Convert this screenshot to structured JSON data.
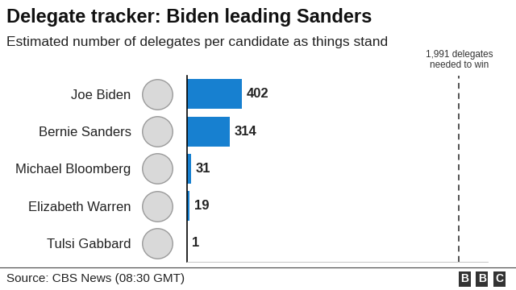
{
  "chart_data": {
    "type": "bar",
    "orientation": "horizontal",
    "title": "Delegate tracker: Biden leading Sanders",
    "subtitle": "Estimated number of delegates per candidate as things stand",
    "categories": [
      "Joe Biden",
      "Bernie Sanders",
      "Michael Bloomberg",
      "Elizabeth Warren",
      "Tulsi Gabbard"
    ],
    "values": [
      402,
      314,
      31,
      19,
      1
    ],
    "color": "#1780d0",
    "data_labels": true,
    "xlim": [
      0,
      2200
    ],
    "xticks": [],
    "tick_labels": "y",
    "grid": false,
    "annotations": [
      {
        "text": "1,991 delegates needed to win",
        "x": 1991
      }
    ],
    "source": "Source: CBS News (08:30 GMT)",
    "logo": "BBC"
  }
}
